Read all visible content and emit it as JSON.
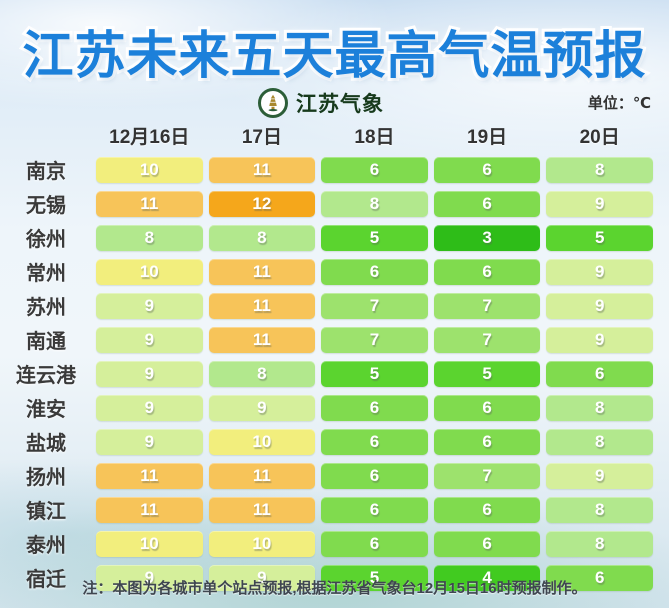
{
  "title": "江苏未来五天最高气温预报",
  "brand": {
    "org": "江苏气象",
    "emblem": "pagoda-emblem"
  },
  "unit_label": "单位：℃",
  "note": "注：本图为各城市单个站点预报,根据江苏省气象台12月15日16时预报制作。",
  "chart_data": {
    "type": "table",
    "title": "江苏未来五天最高气温预报",
    "unit": "℃",
    "columns": [
      "12月16日",
      "17日",
      "18日",
      "19日",
      "20日"
    ],
    "rows": [
      {
        "city": "南京",
        "values": [
          10,
          11,
          6,
          6,
          8
        ]
      },
      {
        "city": "无锡",
        "values": [
          11,
          12,
          8,
          6,
          9
        ]
      },
      {
        "city": "徐州",
        "values": [
          8,
          8,
          5,
          3,
          5
        ]
      },
      {
        "city": "常州",
        "values": [
          10,
          11,
          6,
          6,
          9
        ]
      },
      {
        "city": "苏州",
        "values": [
          9,
          11,
          7,
          7,
          9
        ]
      },
      {
        "city": "南通",
        "values": [
          9,
          11,
          7,
          7,
          9
        ]
      },
      {
        "city": "连云港",
        "values": [
          9,
          8,
          5,
          5,
          6
        ]
      },
      {
        "city": "淮安",
        "values": [
          9,
          9,
          6,
          6,
          8
        ]
      },
      {
        "city": "盐城",
        "values": [
          9,
          10,
          6,
          6,
          8
        ]
      },
      {
        "city": "扬州",
        "values": [
          11,
          11,
          6,
          7,
          9
        ]
      },
      {
        "city": "镇江",
        "values": [
          11,
          11,
          6,
          6,
          8
        ]
      },
      {
        "city": "泰州",
        "values": [
          10,
          10,
          6,
          6,
          8
        ]
      },
      {
        "city": "宿迁",
        "values": [
          9,
          9,
          5,
          4,
          6
        ]
      }
    ],
    "color_scale": {
      "3": "#2ebd18",
      "4": "#41cb20",
      "5": "#5bd42f",
      "6": "#80db4e",
      "7": "#9de26d",
      "8": "#b2e88d",
      "9": "#d5ef9b",
      "10": "#f2ee7d",
      "11": "#f7c459",
      "12": "#f5a71b"
    },
    "colors": {
      "title_blue": "#1c80da",
      "emblem_green": "#2c5e38",
      "pagoda_gold": "#a8882e"
    }
  }
}
